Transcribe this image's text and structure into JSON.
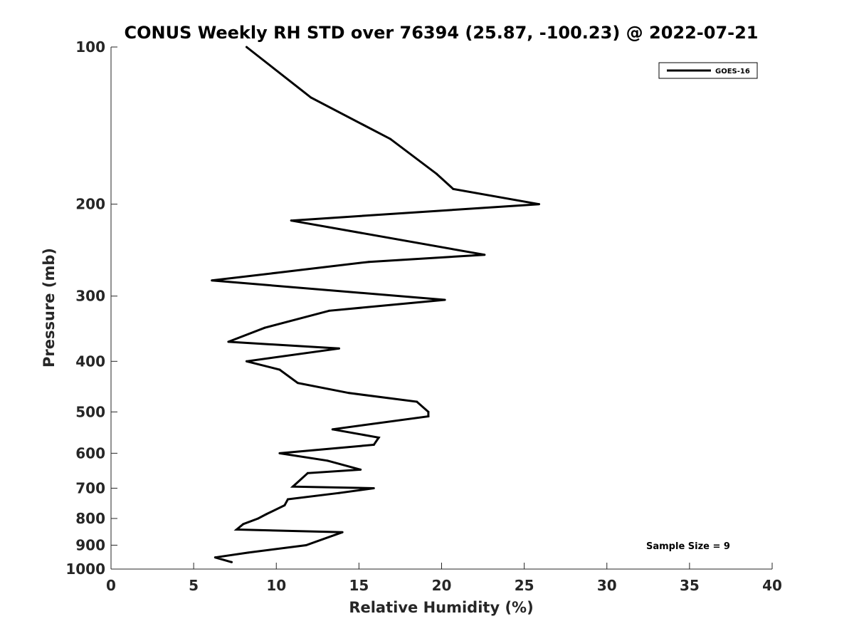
{
  "chart_data": {
    "type": "line",
    "title": "CONUS Weekly RH STD over 76394 (25.87, -100.23) @ 2022-07-21",
    "xlabel": "Relative Humidity (%)",
    "ylabel": "Pressure (mb)",
    "xlim": [
      0,
      40
    ],
    "ylim": [
      100,
      1000
    ],
    "y_scale": "log",
    "y_reversed": true,
    "xticks": [
      "0",
      "5",
      "10",
      "15",
      "20",
      "25",
      "30",
      "35",
      "40"
    ],
    "yticks": [
      "100",
      "200",
      "300",
      "400",
      "500",
      "600",
      "700",
      "800",
      "900",
      "1000"
    ],
    "grid": false,
    "legend_position": "top-right",
    "annotation": "Sample Size = 9",
    "series": [
      {
        "name": "GOES-16",
        "color": "#000000",
        "points": [
          [
            8.2,
            100
          ],
          [
            12.1,
            125
          ],
          [
            16.9,
            150
          ],
          [
            19.7,
            175
          ],
          [
            20.7,
            187
          ],
          [
            25.9,
            200
          ],
          [
            10.9,
            215
          ],
          [
            22.6,
            250
          ],
          [
            15.6,
            258
          ],
          [
            6.1,
            280
          ],
          [
            20.2,
            305
          ],
          [
            13.2,
            320
          ],
          [
            9.3,
            345
          ],
          [
            7.1,
            367
          ],
          [
            13.8,
            378
          ],
          [
            8.2,
            400
          ],
          [
            10.2,
            415
          ],
          [
            11.3,
            440
          ],
          [
            14.4,
            460
          ],
          [
            18.5,
            478
          ],
          [
            19.2,
            500
          ],
          [
            19.2,
            510
          ],
          [
            13.4,
            540
          ],
          [
            16.2,
            560
          ],
          [
            15.9,
            578
          ],
          [
            10.2,
            600
          ],
          [
            13.1,
            620
          ],
          [
            15.1,
            645
          ],
          [
            11.9,
            655
          ],
          [
            11.0,
            695
          ],
          [
            15.9,
            700
          ],
          [
            13.8,
            715
          ],
          [
            10.7,
            735
          ],
          [
            10.5,
            755
          ],
          [
            9.4,
            785
          ],
          [
            8.9,
            800
          ],
          [
            8.0,
            820
          ],
          [
            7.6,
            840
          ],
          [
            14.0,
            850
          ],
          [
            11.8,
            900
          ],
          [
            8.3,
            930
          ],
          [
            6.3,
            950
          ],
          [
            7.3,
            970
          ]
        ]
      }
    ]
  }
}
